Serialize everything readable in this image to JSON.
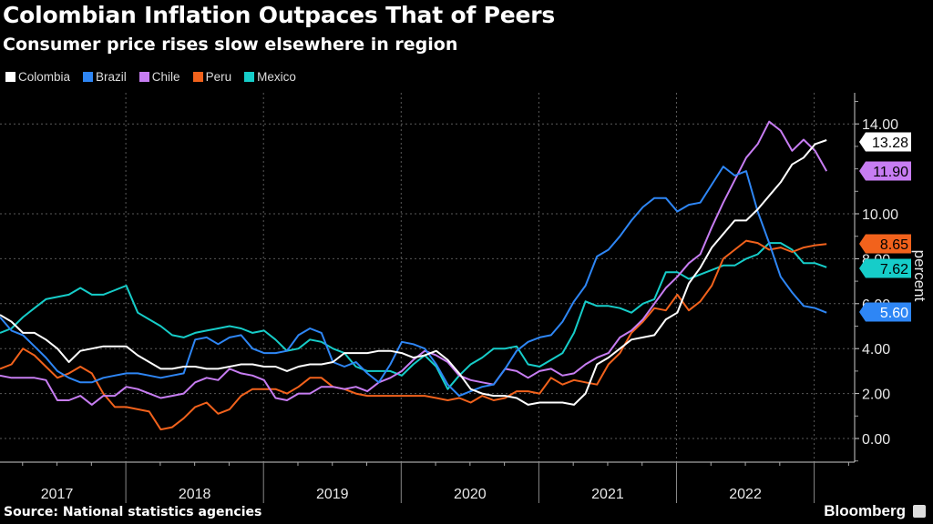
{
  "header": {
    "title": "Colombian Inflation Outpaces That of Peers",
    "subtitle": "Consumer price rises slow elsewhere in region"
  },
  "footer": {
    "source": "Source: National statistics agencies",
    "brand": "Bloomberg"
  },
  "chart_data": {
    "type": "line",
    "title": "Colombian Inflation Outpaces That of Peers",
    "subtitle": "Consumer price rises slow elsewhere in region",
    "xlabel": "",
    "ylabel": "percent",
    "ylim": [
      -1,
      15
    ],
    "yticks": [
      0,
      2,
      4,
      6,
      8,
      10,
      14
    ],
    "ytick_labels": [
      "0.00",
      "2.00",
      "4.00",
      "6.00",
      "8.00",
      "10.00",
      "14.00"
    ],
    "x_start": "2017-01",
    "x_end": "2023-01",
    "x_frequency": "monthly",
    "year_labels": [
      "2017",
      "2018",
      "2019",
      "2020",
      "2021",
      "2022"
    ],
    "grid": true,
    "legend_position": "top-left",
    "series": [
      {
        "name": "Colombia",
        "color": "#ffffff",
        "last_label": "13.28",
        "text_color": "#000000",
        "values": [
          5.5,
          5.2,
          4.7,
          4.7,
          4.4,
          4.0,
          3.4,
          3.9,
          4.0,
          4.1,
          4.1,
          4.1,
          3.7,
          3.4,
          3.1,
          3.1,
          3.2,
          3.2,
          3.1,
          3.1,
          3.2,
          3.3,
          3.3,
          3.2,
          3.2,
          3.0,
          3.2,
          3.3,
          3.3,
          3.4,
          3.8,
          3.8,
          3.8,
          3.9,
          3.9,
          3.8,
          3.6,
          3.7,
          3.9,
          3.5,
          2.9,
          2.2,
          2.0,
          1.9,
          1.9,
          1.8,
          1.5,
          1.6,
          1.6,
          1.6,
          1.5,
          2.0,
          3.3,
          3.6,
          4.0,
          4.4,
          4.5,
          4.6,
          5.3,
          5.6,
          6.9,
          7.6,
          8.5,
          9.1,
          9.7,
          9.7,
          10.2,
          10.8,
          11.4,
          12.2,
          12.5,
          13.1,
          13.28
        ]
      },
      {
        "name": "Brazil",
        "color": "#2e86f5",
        "last_label": "5.60",
        "text_color": "#ffffff",
        "values": [
          5.4,
          4.8,
          4.6,
          4.1,
          3.6,
          3.0,
          2.7,
          2.5,
          2.5,
          2.7,
          2.8,
          2.9,
          2.9,
          2.8,
          2.7,
          2.8,
          2.9,
          4.4,
          4.5,
          4.2,
          4.5,
          4.6,
          4.0,
          3.8,
          3.8,
          3.9,
          4.6,
          4.9,
          4.7,
          3.4,
          3.2,
          3.4,
          2.9,
          2.5,
          3.3,
          4.3,
          4.2,
          4.0,
          3.3,
          2.4,
          1.9,
          2.1,
          2.3,
          2.4,
          3.1,
          3.9,
          4.3,
          4.5,
          4.6,
          5.2,
          6.1,
          6.8,
          8.1,
          8.4,
          9.0,
          9.7,
          10.3,
          10.7,
          10.7,
          10.1,
          10.4,
          10.5,
          11.3,
          12.1,
          11.7,
          11.9,
          10.1,
          8.7,
          7.2,
          6.5,
          5.9,
          5.8,
          5.6
        ]
      },
      {
        "name": "Chile",
        "color": "#c77df2",
        "last_label": "11.90",
        "text_color": "#000000",
        "values": [
          2.8,
          2.7,
          2.7,
          2.7,
          2.6,
          1.7,
          1.7,
          1.9,
          1.5,
          1.9,
          1.9,
          2.3,
          2.2,
          2.0,
          1.8,
          1.9,
          2.0,
          2.5,
          2.7,
          2.6,
          3.1,
          2.9,
          2.8,
          2.6,
          1.8,
          1.7,
          2.0,
          2.0,
          2.3,
          2.3,
          2.2,
          2.3,
          2.1,
          2.5,
          2.7,
          3.0,
          3.5,
          3.9,
          3.7,
          3.4,
          2.8,
          2.6,
          2.5,
          2.4,
          3.1,
          3.0,
          2.7,
          3.0,
          3.1,
          2.8,
          2.9,
          3.3,
          3.6,
          3.8,
          4.5,
          4.8,
          5.3,
          6.0,
          6.7,
          7.2,
          7.8,
          8.2,
          9.4,
          10.5,
          11.5,
          12.5,
          13.1,
          14.1,
          13.7,
          12.8,
          13.3,
          12.8,
          11.9
        ]
      },
      {
        "name": "Peru",
        "color": "#f2621c",
        "last_label": "8.65",
        "text_color": "#000000",
        "values": [
          3.1,
          3.3,
          4.0,
          3.7,
          3.2,
          2.7,
          2.9,
          3.2,
          2.9,
          2.0,
          1.4,
          1.4,
          1.3,
          1.2,
          0.4,
          0.5,
          0.9,
          1.4,
          1.6,
          1.1,
          1.3,
          1.9,
          2.2,
          2.2,
          2.2,
          2.0,
          2.3,
          2.7,
          2.7,
          2.3,
          2.2,
          2.0,
          1.9,
          1.9,
          1.9,
          1.9,
          1.9,
          1.9,
          1.8,
          1.7,
          1.8,
          1.6,
          1.9,
          1.7,
          1.8,
          2.1,
          2.1,
          2.0,
          2.7,
          2.4,
          2.6,
          2.5,
          2.4,
          3.3,
          3.8,
          4.7,
          5.2,
          5.8,
          5.7,
          6.4,
          5.7,
          6.1,
          6.8,
          8.0,
          8.4,
          8.8,
          8.7,
          8.4,
          8.5,
          8.3,
          8.5,
          8.6,
          8.65
        ]
      },
      {
        "name": "Mexico",
        "color": "#16cdc9",
        "last_label": "7.62",
        "text_color": "#000000",
        "values": [
          4.7,
          4.9,
          5.4,
          5.8,
          6.2,
          6.3,
          6.4,
          6.7,
          6.4,
          6.4,
          6.6,
          6.8,
          5.6,
          5.3,
          5.0,
          4.6,
          4.5,
          4.7,
          4.8,
          4.9,
          5.0,
          4.9,
          4.7,
          4.8,
          4.4,
          3.9,
          4.0,
          4.4,
          4.3,
          4.0,
          3.8,
          3.2,
          3.0,
          3.0,
          3.0,
          2.8,
          3.3,
          3.7,
          3.2,
          2.2,
          2.8,
          3.3,
          3.6,
          4.0,
          4.0,
          4.1,
          3.3,
          3.2,
          3.5,
          3.8,
          4.7,
          6.1,
          5.9,
          5.9,
          5.8,
          5.6,
          6.0,
          6.2,
          7.4,
          7.4,
          7.1,
          7.3,
          7.5,
          7.7,
          7.7,
          8.0,
          8.2,
          8.7,
          8.7,
          8.4,
          7.8,
          7.8,
          7.62
        ]
      }
    ]
  }
}
